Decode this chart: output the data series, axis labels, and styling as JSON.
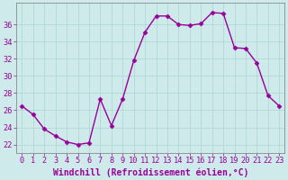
{
  "x": [
    0,
    1,
    2,
    3,
    4,
    5,
    6,
    7,
    8,
    9,
    10,
    11,
    12,
    13,
    14,
    15,
    16,
    17,
    18,
    19,
    20,
    21,
    22,
    23
  ],
  "y": [
    26.5,
    25.5,
    23.8,
    23.0,
    22.3,
    22.0,
    22.2,
    27.3,
    24.2,
    27.3,
    31.8,
    35.1,
    37.0,
    37.0,
    36.0,
    35.9,
    36.1,
    37.4,
    37.3,
    33.3,
    33.2,
    31.5,
    27.7,
    26.5
  ],
  "line_color": "#990099",
  "marker": "D",
  "marker_size": 2.5,
  "xlim": [
    -0.5,
    23.5
  ],
  "ylim": [
    21.0,
    38.5
  ],
  "yticks": [
    22,
    24,
    26,
    28,
    30,
    32,
    34,
    36
  ],
  "xticks": [
    0,
    1,
    2,
    3,
    4,
    5,
    6,
    7,
    8,
    9,
    10,
    11,
    12,
    13,
    14,
    15,
    16,
    17,
    18,
    19,
    20,
    21,
    22,
    23
  ],
  "xlabel": "Windchill (Refroidissement éolien,°C)",
  "bg_color": "#ceeaea",
  "grid_color": "#b0d8d8",
  "spine_color": "#888888",
  "tick_color": "#990099",
  "label_color": "#990099",
  "xlabel_fontsize": 7.0,
  "tick_fontsize": 6.2,
  "linewidth": 1.0
}
